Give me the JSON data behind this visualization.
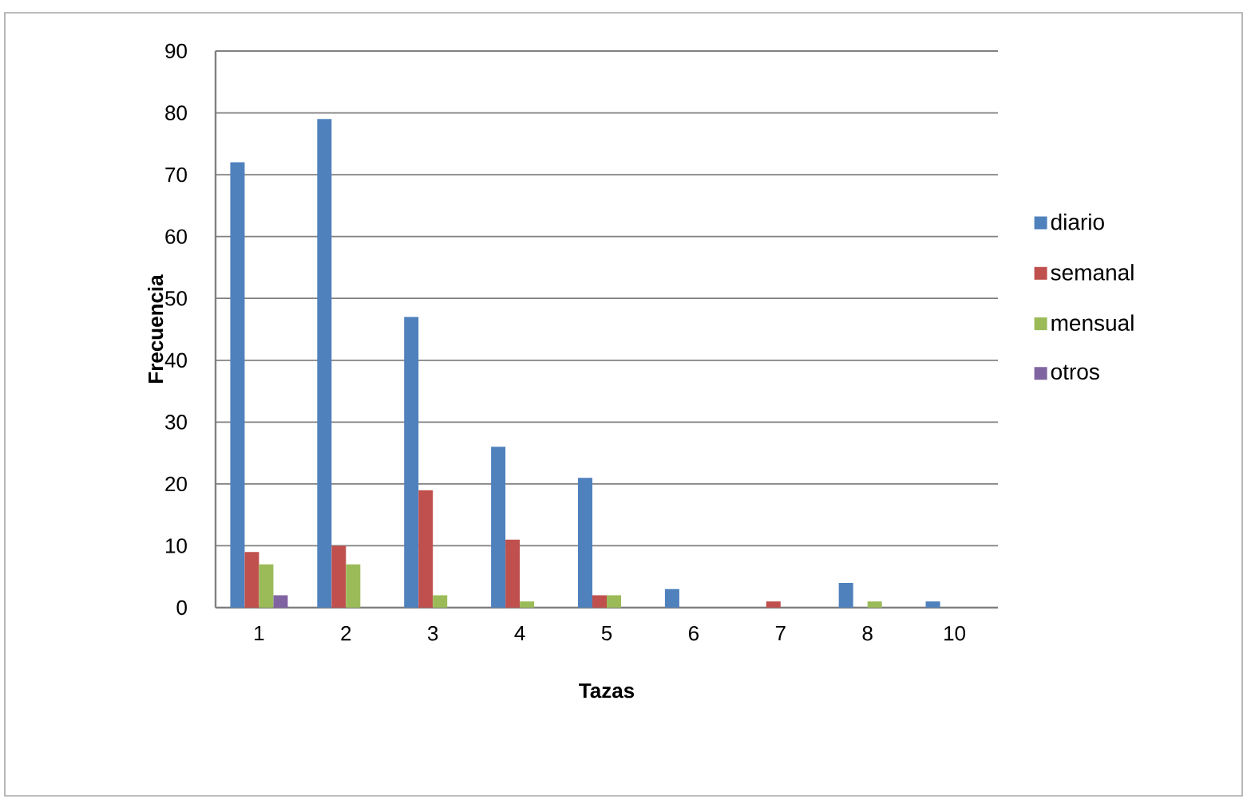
{
  "chart_data": {
    "type": "bar",
    "xlabel": "Tazas",
    "ylabel": "Frecuencia",
    "categories": [
      "1",
      "2",
      "3",
      "4",
      "5",
      "6",
      "7",
      "8",
      "10"
    ],
    "series": [
      {
        "name": "diario",
        "color": "#4f81bd",
        "values": [
          72,
          79,
          47,
          26,
          21,
          3,
          0,
          4,
          1
        ]
      },
      {
        "name": "semanal",
        "color": "#c0504d",
        "values": [
          9,
          10,
          19,
          11,
          2,
          0,
          1,
          0,
          0
        ]
      },
      {
        "name": "mensual",
        "color": "#9bbb59",
        "values": [
          7,
          7,
          2,
          1,
          2,
          0,
          0,
          1,
          0
        ]
      },
      {
        "name": "otros",
        "color": "#8064a2",
        "values": [
          2,
          0,
          0,
          0,
          0,
          0,
          0,
          0,
          0
        ]
      }
    ],
    "ylim": [
      0,
      90
    ],
    "yticks": [
      0,
      10,
      20,
      30,
      40,
      50,
      60,
      70,
      80,
      90
    ],
    "grid": "y",
    "legend": "right"
  }
}
